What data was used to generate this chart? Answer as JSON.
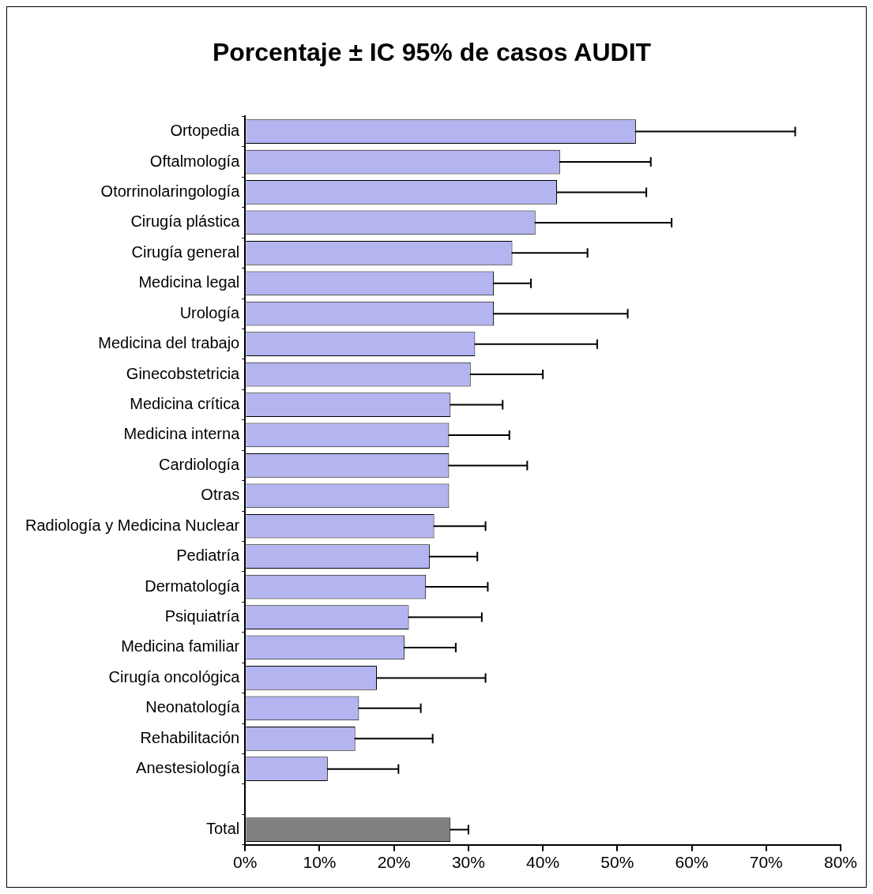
{
  "chart_data": {
    "type": "bar",
    "orientation": "horizontal",
    "title": "Porcentaje ± IC 95% de casos AUDIT",
    "categories": [
      "Ortopedia",
      "Oftalmología",
      "Otorrinolaringología",
      "Cirugía plástica",
      "Cirugía general",
      "Medicina legal",
      "Urología",
      "Medicina del trabajo",
      "Ginecobstetricia",
      "Medicina crítica",
      "Medicina interna",
      "Cardiología",
      "Otras",
      "Radiología y Medicina Nuclear",
      "Pediatría",
      "Dermatología",
      "Psiquiatría",
      "Medicina familiar",
      "Cirugía oncológica",
      "Neonatología",
      "Rehabilitación",
      "Anestesiología",
      null,
      "Total"
    ],
    "values": [
      52.5,
      42.3,
      41.9,
      39.0,
      35.9,
      33.4,
      33.4,
      30.9,
      30.3,
      27.6,
      27.4,
      27.4,
      27.4,
      25.4,
      24.8,
      24.3,
      22.0,
      21.4,
      17.7,
      15.3,
      14.8,
      11.1,
      null,
      27.6
    ],
    "errors": [
      21.4,
      12.2,
      12.0,
      18.3,
      10.1,
      5.0,
      18.0,
      16.4,
      9.7,
      7.0,
      8.1,
      10.5,
      null,
      6.9,
      6.4,
      8.3,
      9.8,
      6.9,
      14.6,
      8.3,
      10.4,
      9.5,
      null,
      2.4
    ],
    "colors": [
      "#b4b4f0",
      "#b4b4f0",
      "#b4b4f0",
      "#b4b4f0",
      "#b4b4f0",
      "#b4b4f0",
      "#b4b4f0",
      "#b4b4f0",
      "#b4b4f0",
      "#b4b4f0",
      "#b4b4f0",
      "#b4b4f0",
      "#b4b4f0",
      "#b4b4f0",
      "#b4b4f0",
      "#b4b4f0",
      "#b4b4f0",
      "#b4b4f0",
      "#b4b4f0",
      "#b4b4f0",
      "#b4b4f0",
      "#b4b4f0",
      "#b4b4f0",
      "#808080"
    ],
    "xlim": [
      0,
      80
    ],
    "xticks": [
      {
        "value": 0,
        "label": "0%"
      },
      {
        "value": 10,
        "label": "10%"
      },
      {
        "value": 20,
        "label": "20%"
      },
      {
        "value": 30,
        "label": "30%"
      },
      {
        "value": 40,
        "label": "40%"
      },
      {
        "value": 50,
        "label": "50%"
      },
      {
        "value": 60,
        "label": "60%"
      },
      {
        "value": 70,
        "label": "70%"
      },
      {
        "value": 80,
        "label": "80%"
      }
    ],
    "grid": false,
    "legend": false
  }
}
